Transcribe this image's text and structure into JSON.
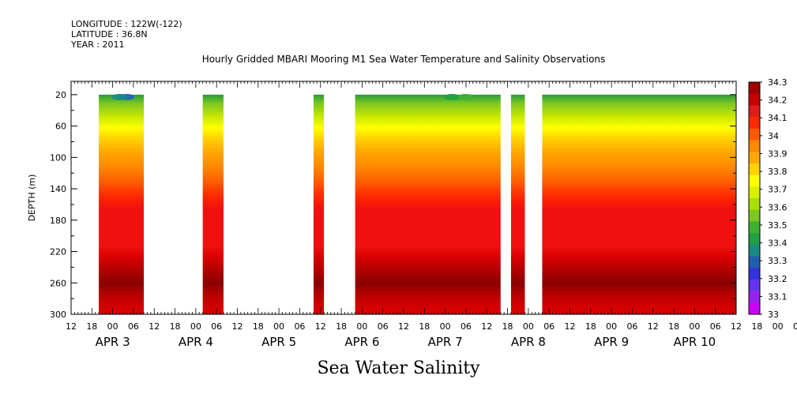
{
  "header": {
    "longitude": "LONGITUDE : 122W(-122)",
    "latitude": "LATITUDE : 36.8N",
    "year": "YEAR : 2011"
  },
  "chart_data": {
    "type": "heatmap",
    "title": "Hourly Gridded MBARI Mooring M1 Sea Water Temperature and Salinity Observations",
    "footer_label": "Sea Water Salinity",
    "xlabel": "",
    "ylabel": "DEPTH (m)",
    "y_ticks": [
      20,
      60,
      100,
      140,
      180,
      220,
      260,
      300
    ],
    "ylim": [
      300,
      3
    ],
    "x_hour_ticks": [
      "12",
      "18",
      "00",
      "06",
      "12",
      "18",
      "00",
      "06",
      "12",
      "18",
      "00",
      "06",
      "12",
      "18",
      "00",
      "06",
      "12",
      "18",
      "00",
      "06",
      "12",
      "18",
      "00",
      "06",
      "12",
      "18",
      "00",
      "06",
      "12",
      "18",
      "00",
      "06",
      "12",
      "18",
      "00",
      "06",
      "12"
    ],
    "day_labels": [
      {
        "label": "APR  3",
        "hour": 0
      },
      {
        "label": "APR  4",
        "hour": 24
      },
      {
        "label": "APR  5",
        "hour": 48
      },
      {
        "label": "APR  6",
        "hour": 72
      },
      {
        "label": "APR  7",
        "hour": 96
      },
      {
        "label": "APR  8",
        "hour": 120
      },
      {
        "label": "APR  9",
        "hour": 144
      },
      {
        "label": "APR 10",
        "hour": 168
      }
    ],
    "xlim_hours": [
      -12,
      180
    ],
    "data_segments": [
      {
        "start": -4,
        "end": 9
      },
      {
        "start": 26,
        "end": 32
      },
      {
        "start": 58,
        "end": 61
      },
      {
        "start": 70,
        "end": 112
      },
      {
        "start": 115,
        "end": 119
      },
      {
        "start": 124,
        "end": 180
      }
    ],
    "depth_profile": [
      {
        "depth": 20,
        "value": 33.65
      },
      {
        "depth": 30,
        "value": 33.7
      },
      {
        "depth": 40,
        "value": 33.78
      },
      {
        "depth": 55,
        "value": 33.85
      },
      {
        "depth": 70,
        "value": 33.93
      },
      {
        "depth": 90,
        "value": 33.98
      },
      {
        "depth": 110,
        "value": 34.02
      },
      {
        "depth": 130,
        "value": 34.06
      },
      {
        "depth": 150,
        "value": 34.12
      },
      {
        "depth": 200,
        "value": 34.14
      },
      {
        "depth": 215,
        "value": 34.17
      },
      {
        "depth": 235,
        "value": 34.2
      },
      {
        "depth": 250,
        "value": 34.26
      },
      {
        "depth": 262,
        "value": 34.23
      },
      {
        "depth": 280,
        "value": 34.2
      },
      {
        "depth": 300,
        "value": 34.18
      }
    ],
    "surface_anomalies": [
      {
        "hour": 4,
        "value": 33.32
      },
      {
        "hour": 2,
        "value": 33.45
      },
      {
        "hour": 98,
        "value": 33.55
      },
      {
        "hour": 102,
        "value": 33.58
      }
    ],
    "colorbar": {
      "levels": [
        "34.3",
        "34.2",
        "34.1",
        "34",
        "33.9",
        "33.8",
        "33.7",
        "33.6",
        "33.5",
        "33.4",
        "33.3",
        "33.2",
        "33.1",
        "33"
      ],
      "colors": [
        "#a00000",
        "#c80000",
        "#e01b1b",
        "#ff2a00",
        "#ff5a00",
        "#ff8800",
        "#ffa800",
        "#ffd200",
        "#ffff00",
        "#d8f000",
        "#a8e000",
        "#7cc820",
        "#40b030",
        "#20a040",
        "#1a8a80",
        "#2060b0",
        "#3333e0",
        "#6633ee",
        "#9922ee",
        "#cc00ff"
      ]
    }
  }
}
